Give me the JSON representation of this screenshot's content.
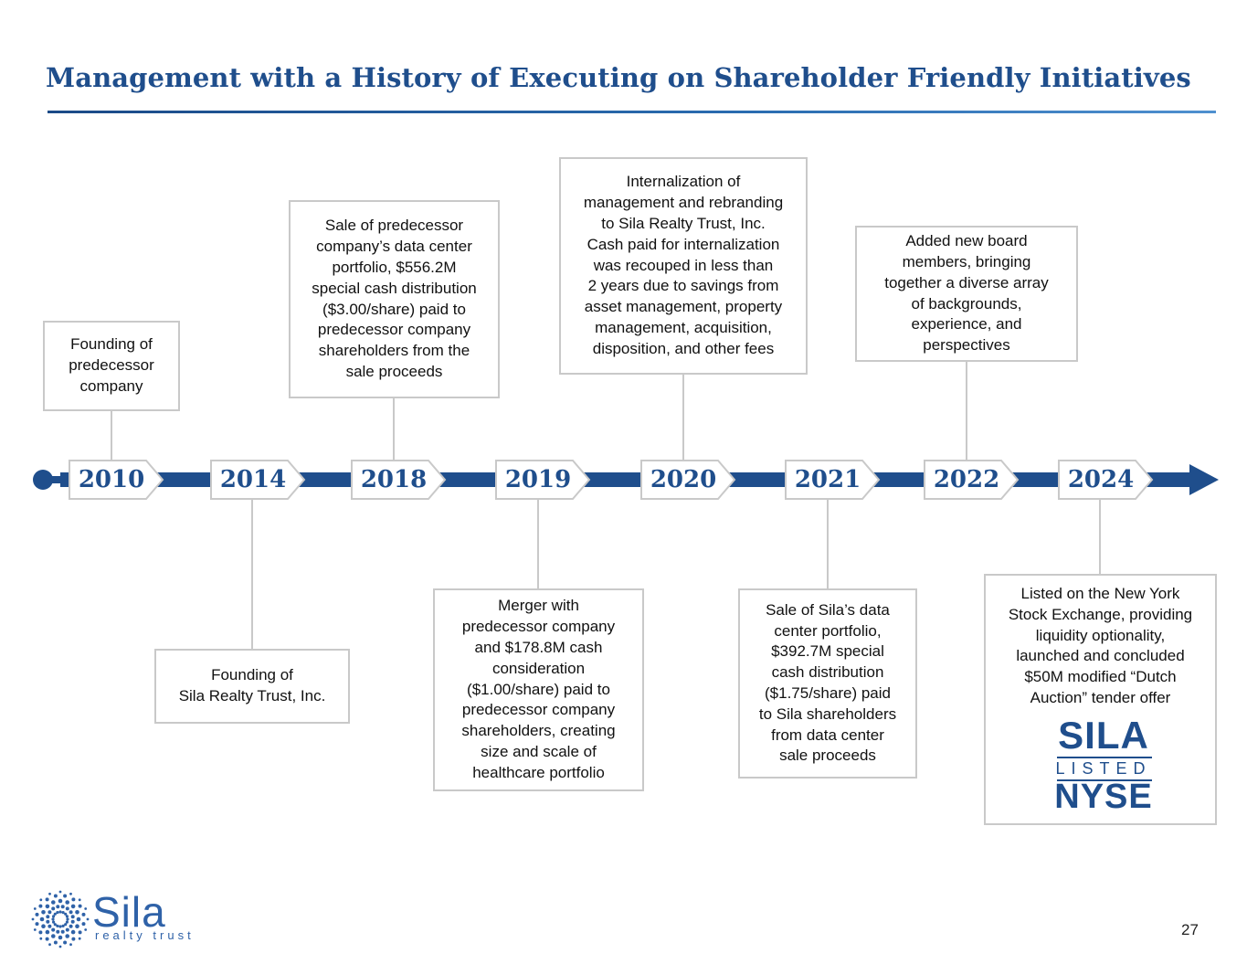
{
  "title": "Management with a History of Executing on Shareholder Friendly Initiatives",
  "colors": {
    "brand_blue": "#1f4e8c",
    "box_border": "#c9c9c9",
    "timeline": "#1f4e8c"
  },
  "timeline": {
    "years": [
      "2010",
      "2014",
      "2018",
      "2019",
      "2020",
      "2021",
      "2022",
      "2024"
    ],
    "events": {
      "y2010": "Founding of\npredecessor\ncompany",
      "y2014": "Founding of\nSila Realty Trust, Inc.",
      "y2018": "Sale of predecessor\ncompany’s data center\nportfolio, $556.2M\nspecial cash distribution\n($3.00/share) paid to\npredecessor company\nshareholders from the\nsale proceeds",
      "y2019": "Merger with\npredecessor company\nand $178.8M cash\nconsideration\n($1.00/share) paid to\npredecessor company\nshareholders, creating\nsize and scale of\nhealthcare portfolio",
      "y2020": "Internalization of\nmanagement and rebranding\nto Sila Realty Trust, Inc.\nCash paid for internalization\nwas recouped in less than\n2 years due to savings from\nasset management, property\nmanagement, acquisition,\ndisposition, and other fees",
      "y2021": "Sale of Sila’s data\ncenter portfolio,\n$392.7M special\ncash distribution\n($1.75/share) paid\nto Sila shareholders\nfrom data center\nsale proceeds",
      "y2022": "Added new board\nmembers, bringing\ntogether a diverse array\nof backgrounds,\nexperience, and\nperspectives",
      "y2024": "Listed on the New York\nStock Exchange, providing\nliquidity optionality,\nlaunched and concluded\n$50M modified “Dutch\nAuction” tender offer"
    }
  },
  "nyse_badge": {
    "top": "SILA",
    "middle": "LISTED",
    "bottom": "NYSE"
  },
  "logo": {
    "name": "Sila",
    "tagline": "realty trust"
  },
  "page_number": "27"
}
